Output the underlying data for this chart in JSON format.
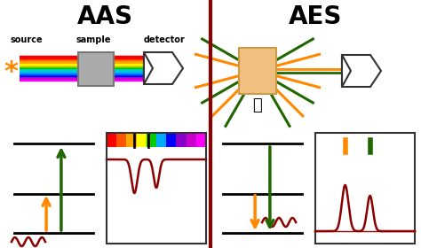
{
  "title_aas": "AAS",
  "title_aes": "AES",
  "bg_color": "#ffffff",
  "divider_color": "#8b0000",
  "title_color": "#000000",
  "arrow_orange": "#ff8800",
  "arrow_green": "#226600",
  "dark_red": "#8b0000",
  "gray_sample": "#aaaaaa",
  "peach_box": "#f0c080",
  "label_source": "source",
  "label_sample": "sample",
  "label_detector": "detector",
  "fig_w": 4.74,
  "fig_h": 2.8,
  "dpi": 100
}
